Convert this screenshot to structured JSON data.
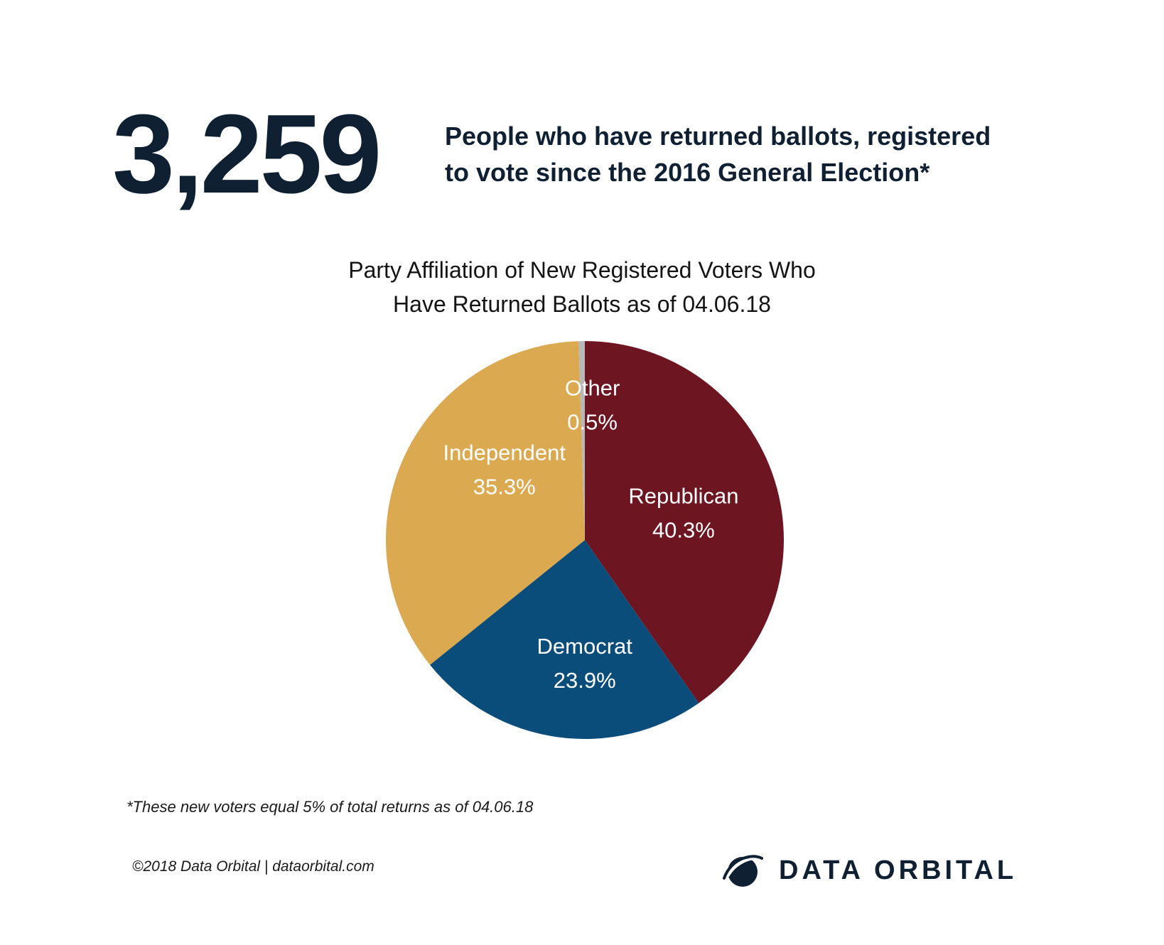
{
  "headline": {
    "number": "3,259",
    "line1": "People who have returned ballots, registered",
    "line2": "to vote since the 2016 General Election*"
  },
  "chart_data": {
    "type": "pie",
    "title": "Party Affiliation of New Registered Voters Who Have Returned Ballots as of 04.06.18",
    "title_lines": [
      "Party Affiliation of New Registered Voters Who",
      "Have Returned Ballots as of 04.06.18"
    ],
    "slices": [
      {
        "name": "Republican",
        "value": 40.3,
        "label": "40.3%",
        "color": "#6e1522"
      },
      {
        "name": "Democrat",
        "value": 23.9,
        "label": "23.9%",
        "color": "#0b4d7a"
      },
      {
        "name": "Independent",
        "value": 35.3,
        "label": "35.3%",
        "color": "#dbaa50"
      },
      {
        "name": "Other",
        "value": 0.5,
        "label": "0.5%",
        "color": "#b8b8b8"
      }
    ],
    "start": "12 o'clock",
    "direction": "clockwise"
  },
  "footnote": "*These new voters equal 5% of total returns as of 04.06.18",
  "copyright": "©2018 Data Orbital | dataorbital.com",
  "brand": {
    "name": "DATA ORBITAL",
    "logo_icon": "orbit-globe-icon",
    "color": "#0f2033"
  }
}
